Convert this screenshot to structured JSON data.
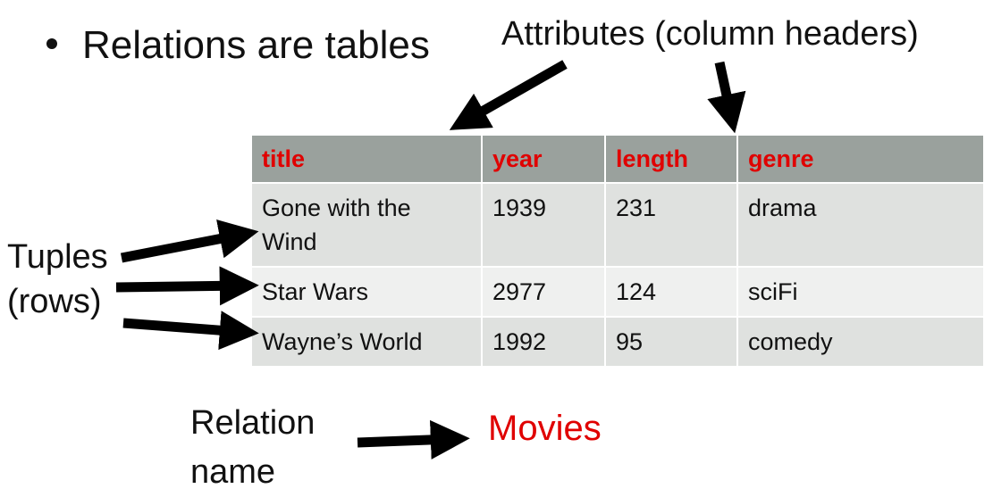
{
  "bullet": "Relations are tables",
  "labels": {
    "attributes": "Attributes (column headers)",
    "tuples_line1": "Tuples",
    "tuples_line2": "(rows)",
    "relation_line1": "Relation",
    "relation_line2": "name",
    "relation_name": "Movies"
  },
  "table": {
    "columns": [
      "title",
      "year",
      "length",
      "genre"
    ],
    "rows": [
      [
        "Gone with the Wind",
        "1939",
        "231",
        "drama"
      ],
      [
        "Star Wars",
        "2977",
        "124",
        "sciFi"
      ],
      [
        "Wayne’s World",
        "1992",
        "95",
        "comedy"
      ]
    ]
  },
  "colors": {
    "header_bg": "#9aa19d",
    "header_text": "#e00000",
    "row_dark": "#dfe1df",
    "row_light": "#eff0ef",
    "accent": "#e00000"
  }
}
